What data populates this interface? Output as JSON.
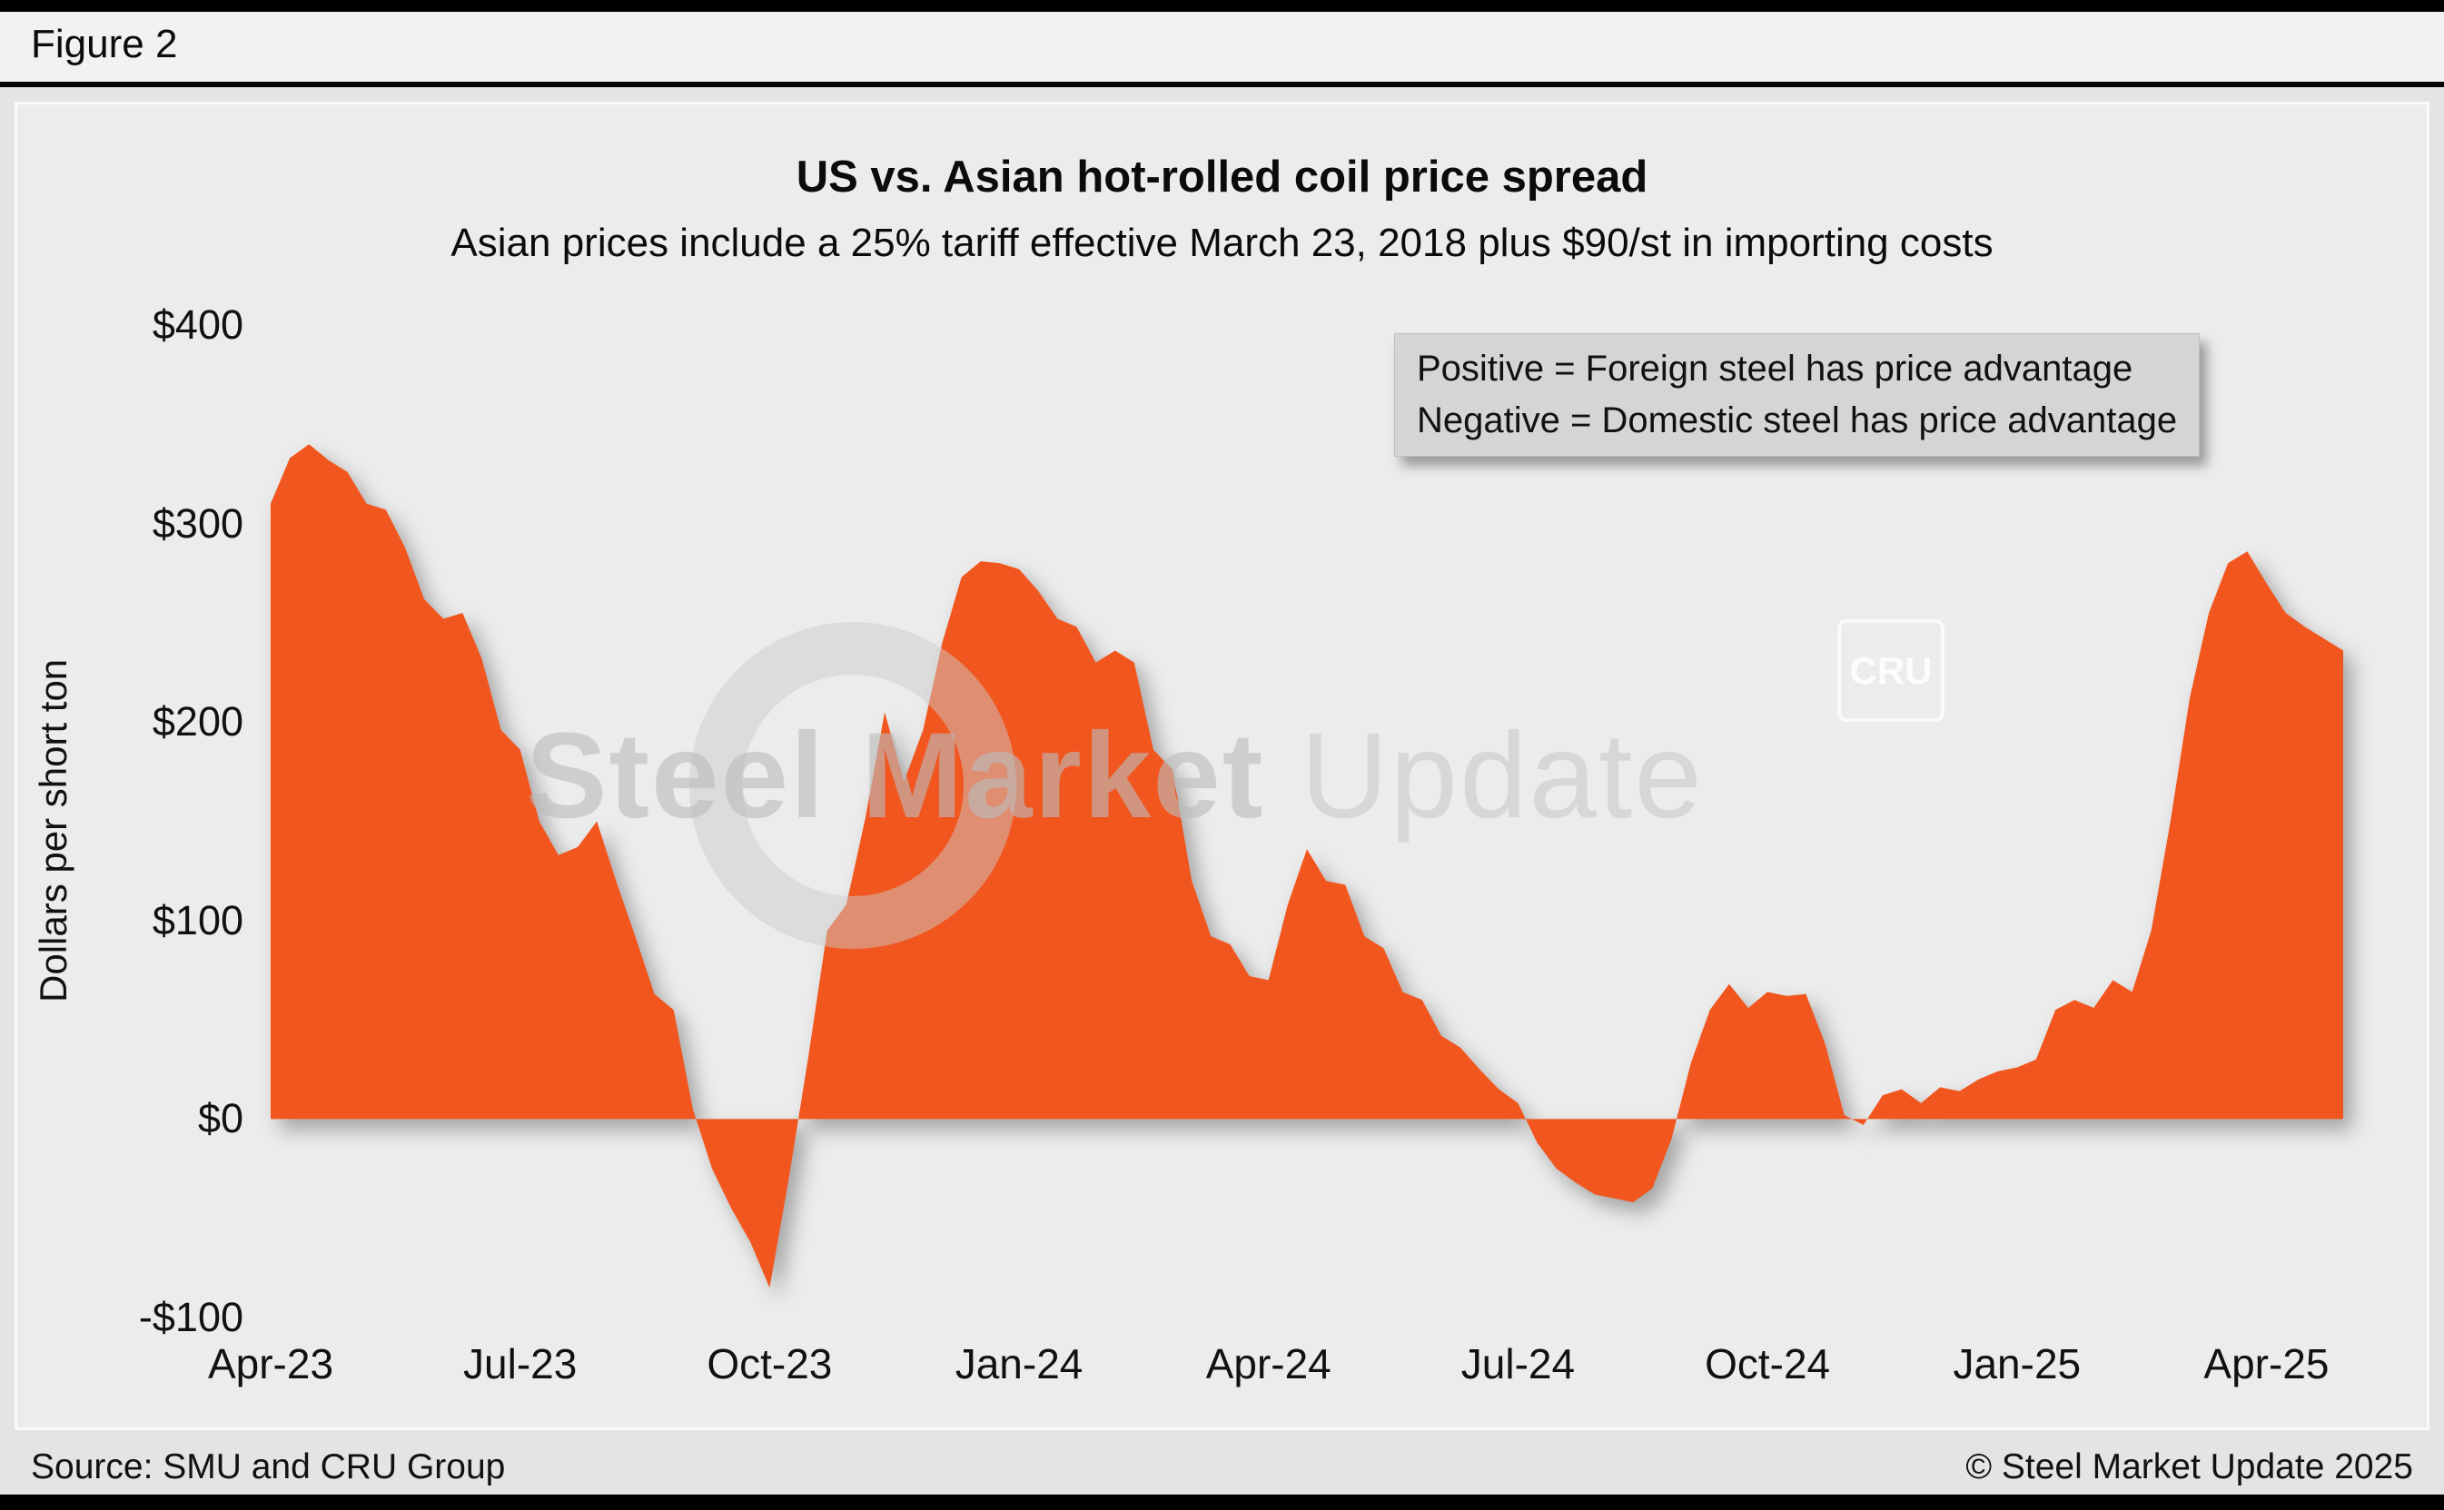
{
  "figure_label": "Figure 2",
  "legend": {
    "line1": "Positive = Foreign steel has price advantage",
    "line2": "Negative = Domestic steel has price advantage"
  },
  "watermark": {
    "part1": "Steel Market",
    "part2": "Update",
    "badge": "CRU"
  },
  "footer": {
    "source": "Source: SMU and CRU Group",
    "copyright": "© Steel Market Update 2025"
  },
  "colors": {
    "area": "#F2561F",
    "page_background": "#E4E4E4",
    "panel_background": "#ECECEC",
    "legend_background": "#D5D5D5",
    "bars": "#000000"
  },
  "chart_data": {
    "type": "area",
    "title": "US vs. Asian hot-rolled coil price spread",
    "subtitle": "Asian prices include a 25% tariff effective March 23, 2018 plus $90/st in importing costs",
    "ylabel": "Dollars per short ton",
    "ylim": [
      -100,
      400
    ],
    "ytick_labels": [
      "$400",
      "$300",
      "$200",
      "$100",
      "$0",
      "-$100"
    ],
    "xtick_labels": [
      "Apr-23",
      "Jul-23",
      "Oct-23",
      "Jan-24",
      "Apr-24",
      "Jul-24",
      "Oct-24",
      "Jan-25",
      "Apr-25"
    ],
    "xtick_every_weeks": 13,
    "x_unit": "weekly observations, Apr-2023 through May-2025",
    "baseline": 0,
    "grid": false,
    "legend_position": "top-right",
    "series": [
      {
        "name": "spread",
        "values": [
          310,
          333,
          340,
          332,
          326,
          310,
          307,
          288,
          262,
          252,
          255,
          232,
          196,
          186,
          150,
          133,
          137,
          150,
          120,
          92,
          63,
          55,
          5,
          -25,
          -45,
          -62,
          -85,
          -30,
          30,
          95,
          108,
          152,
          205,
          170,
          196,
          240,
          273,
          281,
          280,
          277,
          266,
          252,
          248,
          230,
          236,
          230,
          186,
          176,
          120,
          92,
          88,
          72,
          70,
          108,
          136,
          120,
          118,
          92,
          86,
          64,
          60,
          42,
          36,
          25,
          15,
          8,
          -12,
          -25,
          -32,
          -38,
          -40,
          -42,
          -35,
          -10,
          28,
          55,
          68,
          56,
          64,
          62,
          63,
          38,
          2,
          -3,
          12,
          15,
          8,
          16,
          14,
          20,
          24,
          26,
          30,
          55,
          60,
          56,
          70,
          64,
          95,
          150,
          212,
          255,
          280,
          286,
          270,
          255,
          248,
          242,
          236
        ]
      }
    ]
  }
}
